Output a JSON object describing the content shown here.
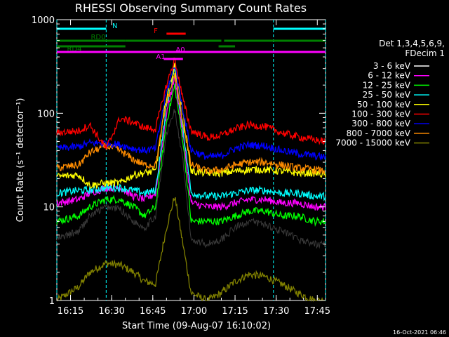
{
  "chart_data": {
    "type": "line",
    "title": "RHESSI Observing Summary Count Rates",
    "xlabel": "Start Time (09-Aug-07 16:10:02)",
    "ylabel": "Count Rate (s⁻¹ detector⁻¹)",
    "y_scale": "log",
    "ylim": [
      1,
      1000
    ],
    "xlim": [
      "16:10",
      "17:48"
    ],
    "x_ticks": [
      "16:15",
      "16:30",
      "16:45",
      "17:00",
      "17:15",
      "17:30",
      "17:45"
    ],
    "y_ticks": [
      "1",
      "10",
      "100",
      "1000"
    ],
    "timestamp": "16-Oct-2021 06:46",
    "legend": {
      "placement": "right",
      "header": [
        "Det 1,3,4,5,6,9,",
        "FDecim 1"
      ],
      "entries": [
        {
          "label": "3 - 6 keV",
          "color": "#000000"
        },
        {
          "label": "6 - 12 keV",
          "color": "#ff00ff"
        },
        {
          "label": "12 - 25 keV",
          "color": "#00ff00"
        },
        {
          "label": "25 - 50 keV",
          "color": "#00ffff"
        },
        {
          "label": "50 - 100 keV",
          "color": "#ffff00"
        },
        {
          "label": "100 - 300 keV",
          "color": "#ff0000"
        },
        {
          "label": "300 - 800 keV",
          "color": "#0000ff"
        },
        {
          "label": "800 - 7000 keV",
          "color": "#ff8c00"
        },
        {
          "label": "7000 - 15000 keV",
          "color": "#808000"
        }
      ]
    },
    "flag_bars": [
      {
        "label": "N",
        "color": "#00ffff",
        "segments": [
          [
            "16:10",
            "16:28"
          ],
          [
            "17:29",
            "17:48"
          ]
        ]
      },
      {
        "label": "F",
        "color": "#ff0000",
        "segments": [
          [
            "16:50",
            "16:57"
          ]
        ]
      },
      {
        "label": "RD0",
        "color": "#008000",
        "segments": [
          [
            "16:10",
            "16:35"
          ],
          [
            "16:35",
            "17:10"
          ],
          [
            "17:11",
            "17:48"
          ]
        ]
      },
      {
        "label": "RD4",
        "color": "#008000",
        "segments": [
          [
            "16:10",
            "16:35"
          ],
          [
            "17:09",
            "17:15"
          ]
        ]
      },
      {
        "label": "A0",
        "color": "#ff00ff",
        "segments": [
          [
            "16:10",
            "17:48"
          ]
        ]
      },
      {
        "label": "A1",
        "color": "#ff00ff",
        "segments": [
          [
            "16:49",
            "16:56"
          ]
        ]
      }
    ],
    "night_markers": [
      "16:10",
      "16:28",
      "17:29",
      "17:48"
    ],
    "series": [
      {
        "name": "3 - 6 keV",
        "color": "#000000",
        "x": [
          "16:10",
          "16:18",
          "16:22",
          "16:28",
          "16:33",
          "16:38",
          "16:42",
          "16:46",
          "16:50",
          "16:53",
          "16:56",
          "16:59",
          "17:05",
          "17:10",
          "17:15",
          "17:20",
          "17:26",
          "17:32",
          "17:38",
          "17:44",
          "17:48"
        ],
        "y": [
          4.5,
          5.5,
          8,
          10,
          9.5,
          7,
          6,
          8,
          60,
          110,
          30,
          4.5,
          4,
          4.5,
          6,
          7,
          6.5,
          5.5,
          4.5,
          4,
          4
        ]
      },
      {
        "name": "6 - 12 keV",
        "color": "#ff00ff",
        "x": [
          "16:10",
          "16:18",
          "16:22",
          "16:28",
          "16:33",
          "16:38",
          "16:42",
          "16:46",
          "16:50",
          "16:53",
          "16:56",
          "16:59",
          "17:05",
          "17:10",
          "17:15",
          "17:20",
          "17:26",
          "17:32",
          "17:38",
          "17:44",
          "17:48"
        ],
        "y": [
          11,
          12,
          14,
          16,
          16,
          13,
          12,
          14,
          100,
          250,
          60,
          11,
          10,
          10,
          11,
          12,
          12,
          11,
          11,
          10,
          10
        ]
      },
      {
        "name": "12 - 25 keV",
        "color": "#00ff00",
        "x": [
          "16:10",
          "16:18",
          "16:22",
          "16:28",
          "16:33",
          "16:38",
          "16:42",
          "16:46",
          "16:50",
          "16:53",
          "16:56",
          "16:59",
          "17:05",
          "17:10",
          "17:15",
          "17:20",
          "17:26",
          "17:32",
          "17:38",
          "17:44",
          "17:48"
        ],
        "y": [
          7,
          8,
          10,
          12,
          12,
          10,
          8,
          10,
          80,
          200,
          50,
          7,
          7,
          7,
          8,
          9,
          9,
          8,
          8,
          7,
          7
        ]
      },
      {
        "name": "25 - 50 keV",
        "color": "#00ffff",
        "x": [
          "16:10",
          "16:18",
          "16:22",
          "16:28",
          "16:33",
          "16:38",
          "16:42",
          "16:46",
          "16:50",
          "16:53",
          "16:56",
          "16:59",
          "17:05",
          "17:10",
          "17:15",
          "17:20",
          "17:26",
          "17:32",
          "17:38",
          "17:44",
          "17:48"
        ],
        "y": [
          14,
          15,
          15,
          16,
          16,
          15,
          14,
          15,
          120,
          300,
          70,
          14,
          13,
          13,
          14,
          15,
          15,
          14,
          14,
          13,
          13
        ]
      },
      {
        "name": "50 - 100 keV",
        "color": "#ffff00",
        "x": [
          "16:10",
          "16:18",
          "16:22",
          "16:28",
          "16:33",
          "16:38",
          "16:42",
          "16:46",
          "16:50",
          "16:53",
          "16:56",
          "16:59",
          "17:05",
          "17:10",
          "17:15",
          "17:20",
          "17:26",
          "17:32",
          "17:38",
          "17:44",
          "17:48"
        ],
        "y": [
          21,
          22,
          17,
          18,
          18,
          22,
          23,
          24,
          150,
          320,
          100,
          24,
          23,
          23,
          24,
          25,
          25,
          24,
          23,
          23,
          22
        ]
      },
      {
        "name": "100 - 300 keV",
        "color": "#ff0000",
        "x": [
          "16:10",
          "16:18",
          "16:22",
          "16:28",
          "16:33",
          "16:38",
          "16:42",
          "16:46",
          "16:50",
          "16:53",
          "16:56",
          "16:59",
          "17:05",
          "17:10",
          "17:15",
          "17:20",
          "17:26",
          "17:32",
          "17:38",
          "17:44",
          "17:48"
        ],
        "y": [
          62,
          65,
          75,
          42,
          88,
          80,
          70,
          68,
          200,
          380,
          140,
          65,
          55,
          58,
          68,
          75,
          72,
          62,
          56,
          52,
          50
        ]
      },
      {
        "name": "300 - 800 keV",
        "color": "#0000ff",
        "x": [
          "16:10",
          "16:18",
          "16:22",
          "16:28",
          "16:33",
          "16:38",
          "16:42",
          "16:46",
          "16:50",
          "16:53",
          "16:56",
          "16:59",
          "17:05",
          "17:10",
          "17:15",
          "17:20",
          "17:26",
          "17:32",
          "17:38",
          "17:44",
          "17:48"
        ],
        "y": [
          42,
          44,
          48,
          48,
          46,
          42,
          40,
          42,
          170,
          330,
          110,
          40,
          34,
          35,
          42,
          46,
          45,
          40,
          37,
          35,
          34
        ]
      },
      {
        "name": "800 - 7000 keV",
        "color": "#ff8c00",
        "x": [
          "16:10",
          "16:18",
          "16:22",
          "16:28",
          "16:33",
          "16:38",
          "16:42",
          "16:46",
          "16:50",
          "16:53",
          "16:56",
          "16:59",
          "17:05",
          "17:10",
          "17:15",
          "17:20",
          "17:26",
          "17:32",
          "17:38",
          "17:44",
          "17:48"
        ],
        "y": [
          26,
          28,
          38,
          45,
          40,
          32,
          28,
          28,
          130,
          260,
          80,
          28,
          24,
          25,
          28,
          30,
          30,
          28,
          26,
          25,
          24
        ]
      },
      {
        "name": "7000 - 15000 keV",
        "color": "#808000",
        "x": [
          "16:10",
          "16:18",
          "16:22",
          "16:28",
          "16:33",
          "16:38",
          "16:42",
          "16:46",
          "16:50",
          "16:53",
          "16:56",
          "16:59",
          "17:05",
          "17:10",
          "17:15",
          "17:20",
          "17:26",
          "17:32",
          "17:38",
          "17:44",
          "17:48"
        ],
        "y": [
          1,
          1.4,
          2,
          2.5,
          2.4,
          2,
          1.6,
          1.5,
          6,
          13,
          4,
          1.2,
          1,
          1.2,
          1.6,
          1.9,
          1.8,
          1.5,
          1.2,
          1,
          1
        ]
      }
    ]
  }
}
